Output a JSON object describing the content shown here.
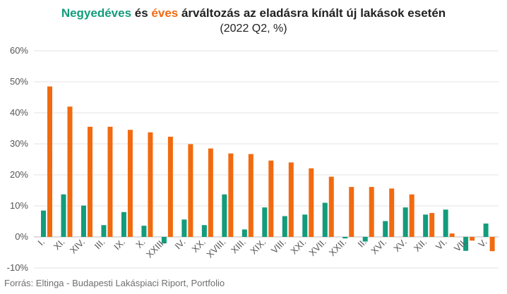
{
  "title": {
    "part_quarterly": "Negyedéves",
    "part_and": " és ",
    "part_annual": "éves",
    "part_rest": " árváltozás az eladásra kínált új lakások esetén"
  },
  "subtitle": "(2022 Q2, %)",
  "source": "Forrás: Eltinga - Budapesti Lakáspiaci Riport, Portfolio",
  "colors": {
    "quarterly": "#129c7c",
    "annual": "#f26a10"
  },
  "chart_data": {
    "type": "bar",
    "categories": [
      "I.",
      "XI.",
      "XIV.",
      "III.",
      "IX.",
      "X.",
      "XXIII.",
      "IV.",
      "XX.",
      "XVIII.",
      "XIII.",
      "XIX.",
      "VIII.",
      "XXI.",
      "XVII.",
      "XXII.",
      "II.",
      "XVI.",
      "XV.",
      "XII.",
      "VI.",
      "VII.",
      "V."
    ],
    "series": [
      {
        "key": "quarterly",
        "values": [
          8.5,
          13.7,
          10.1,
          3.8,
          8.0,
          3.6,
          -2.1,
          5.6,
          3.8,
          13.7,
          2.4,
          9.5,
          6.7,
          7.2,
          11.0,
          -0.5,
          -1.5,
          5.1,
          9.5,
          7.2,
          8.8,
          -4.5,
          4.3
        ]
      },
      {
        "key": "annual",
        "values": [
          48.5,
          42.0,
          35.5,
          35.5,
          34.5,
          33.7,
          32.3,
          29.9,
          28.5,
          26.9,
          26.7,
          24.6,
          24.0,
          22.1,
          19.4,
          16.1,
          16.1,
          15.6,
          13.7,
          7.7,
          1.1,
          -1.2,
          -4.6
        ]
      }
    ],
    "yticks": [
      -10,
      0,
      10,
      20,
      30,
      40,
      50,
      60
    ],
    "ytick_labels": [
      "-10%",
      "0%",
      "10%",
      "20%",
      "30%",
      "40%",
      "50%",
      "60%"
    ],
    "ylim": [
      -10,
      60
    ],
    "grid": true,
    "legend": "none (colored words in title)"
  }
}
